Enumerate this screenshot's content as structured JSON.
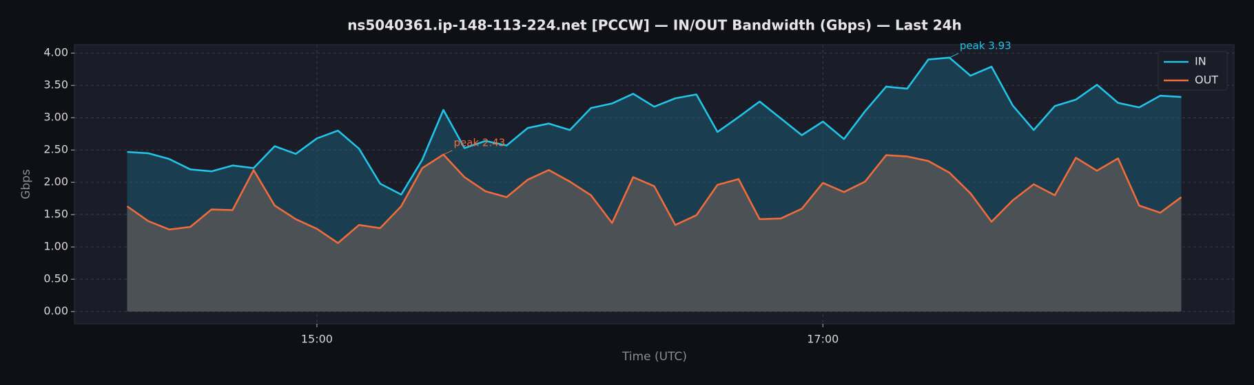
{
  "chart_data": {
    "type": "line",
    "title": "ns5040361.ip-148-113-224.net [PCCW] — IN/OUT Bandwidth (Gbps) — Last 24h",
    "xlabel": "Time (UTC)",
    "ylabel": "Gbps",
    "x": [
      "14:15",
      "14:20",
      "14:25",
      "14:30",
      "14:35",
      "14:40",
      "14:45",
      "14:50",
      "14:55",
      "15:00",
      "15:05",
      "15:10",
      "15:15",
      "15:20",
      "15:25",
      "15:30",
      "15:35",
      "15:40",
      "15:45",
      "15:50",
      "15:55",
      "16:00",
      "16:05",
      "16:10",
      "16:15",
      "16:20",
      "16:25",
      "16:30",
      "16:35",
      "16:40",
      "16:45",
      "16:50",
      "16:55",
      "17:00",
      "17:05",
      "17:10",
      "17:15",
      "17:20",
      "17:25",
      "17:30",
      "17:35",
      "17:40",
      "17:45",
      "17:50",
      "17:55",
      "18:00",
      "18:05",
      "18:10",
      "18:15",
      "18:20",
      "18:25"
    ],
    "series": [
      {
        "name": "IN",
        "color": "#22c5e8",
        "values": [
          2.47,
          2.45,
          2.36,
          2.2,
          2.17,
          2.26,
          2.22,
          2.56,
          2.44,
          2.68,
          2.8,
          2.52,
          1.98,
          1.81,
          2.35,
          3.12,
          2.53,
          2.64,
          2.57,
          2.84,
          2.91,
          2.81,
          3.15,
          3.22,
          3.37,
          3.17,
          3.3,
          3.36,
          2.78,
          3.01,
          3.25,
          2.99,
          2.73,
          2.94,
          2.67,
          3.1,
          3.48,
          3.45,
          3.9,
          3.93,
          3.65,
          3.79,
          3.19,
          2.81,
          3.18,
          3.28,
          3.51,
          3.23,
          3.16,
          3.34,
          3.32
        ]
      },
      {
        "name": "OUT",
        "color": "#f26b3a",
        "values": [
          1.63,
          1.4,
          1.27,
          1.31,
          1.58,
          1.57,
          2.19,
          1.64,
          1.43,
          1.28,
          1.06,
          1.34,
          1.29,
          1.63,
          2.22,
          2.43,
          2.08,
          1.86,
          1.77,
          2.04,
          2.19,
          2.01,
          1.8,
          1.37,
          2.08,
          1.94,
          1.34,
          1.49,
          1.96,
          2.05,
          1.43,
          1.44,
          1.59,
          1.99,
          1.85,
          2.01,
          2.42,
          2.4,
          2.33,
          2.15,
          1.83,
          1.39,
          1.72,
          1.97,
          1.8,
          2.38,
          2.18,
          2.37,
          1.64,
          1.53,
          1.77
        ]
      }
    ],
    "ylim": [
      -0.19,
      4.13
    ],
    "yticks": [
      {
        "value": 0,
        "label": "0.00"
      },
      {
        "value": 0.5,
        "label": "0.50"
      },
      {
        "value": 1,
        "label": "1.00"
      },
      {
        "value": 1.5,
        "label": "1.50"
      },
      {
        "value": 2,
        "label": "2.00"
      },
      {
        "value": 2.5,
        "label": "2.50"
      },
      {
        "value": 3,
        "label": "3.00"
      },
      {
        "value": 3.5,
        "label": "3.50"
      },
      {
        "value": 4,
        "label": "4.00"
      }
    ],
    "xticks": [
      "15:00",
      "17:00"
    ],
    "grid": true,
    "legend": "upper right",
    "annotations": [
      {
        "text": "peak 3.93",
        "x": "17:30",
        "y": 3.93,
        "color": "#22c5e8"
      },
      {
        "text": "peak 2.43",
        "x": "15:30",
        "y": 2.43,
        "color": "#f26b3a"
      }
    ]
  }
}
